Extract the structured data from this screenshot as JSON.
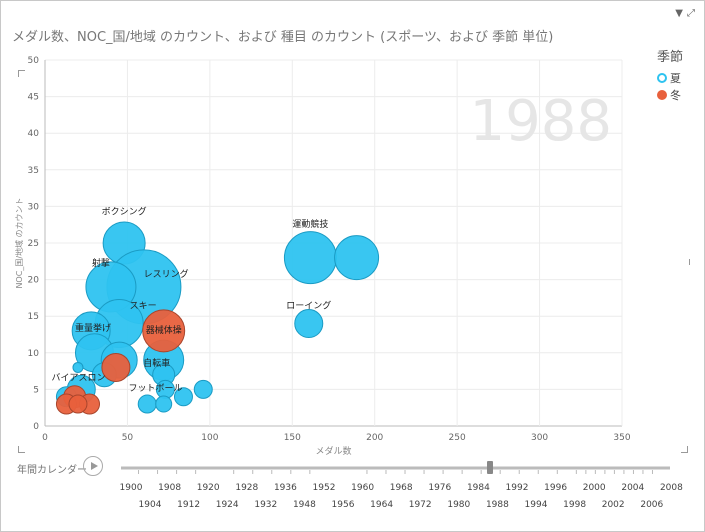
{
  "title": "メダル数、NOC_国/地域 のカウント、および 種目 のカウント (スポーツ、および 季節 単位)",
  "icons": {
    "filter": "filter-icon",
    "expand": "expand-icon"
  },
  "legend": {
    "title": "季節",
    "items": [
      {
        "label": "夏",
        "color": "#2ec3f0",
        "style": "outline"
      },
      {
        "label": "冬",
        "color": "#e8603c",
        "style": "filled"
      }
    ]
  },
  "play_axis": {
    "label": "年間カレンダー",
    "current": "1988",
    "years_top": [
      "1900",
      "1908",
      "1920",
      "1928",
      "1936",
      "1952",
      "1960",
      "1968",
      "1976",
      "1984",
      "1992",
      "1996",
      "2000",
      "2004",
      "2008"
    ],
    "years_bottom": [
      "1904",
      "1912",
      "1924",
      "1932",
      "1948",
      "1956",
      "1964",
      "1972",
      "1980",
      "1988",
      "1994",
      "1998",
      "2002",
      "2006"
    ]
  },
  "chart_data": {
    "type": "scatter",
    "title": "メダル数、NOC_国/地域 のカウント、および 種目 のカウント (スポーツ、および 季節 単位)",
    "xlabel": "メダル数",
    "ylabel": "NOC_国/地域 のカウント",
    "xlim": [
      0,
      350
    ],
    "ylim": [
      0,
      50
    ],
    "xticks": [
      0,
      50,
      100,
      150,
      200,
      250,
      300,
      350
    ],
    "yticks": [
      0,
      5,
      10,
      15,
      20,
      25,
      30,
      35,
      40,
      45,
      50
    ],
    "grid": true,
    "legend_position": "right",
    "watermark": "1988",
    "series": [
      {
        "name": "夏",
        "color": "#2ec3f0",
        "points": [
          {
            "x": 161,
            "y": 23,
            "size": 26,
            "label": "運動競技"
          },
          {
            "x": 189,
            "y": 23,
            "size": 22,
            "label": ""
          },
          {
            "x": 160,
            "y": 14,
            "size": 14,
            "label": "ローイング"
          },
          {
            "x": 48,
            "y": 25,
            "size": 21,
            "label": "ボクシング"
          },
          {
            "x": 60,
            "y": 19,
            "size": 37,
            "label": "レスリング"
          },
          {
            "x": 40,
            "y": 19,
            "size": 25,
            "label": "射撃"
          },
          {
            "x": 45,
            "y": 14,
            "size": 24,
            "label": "スキー"
          },
          {
            "x": 28,
            "y": 13,
            "size": 19,
            "label": "重量挙げ"
          },
          {
            "x": 30,
            "y": 10,
            "size": 19,
            "label": ""
          },
          {
            "x": 45,
            "y": 9,
            "size": 18,
            "label": ""
          },
          {
            "x": 72,
            "y": 9,
            "size": 20,
            "label": "自転車"
          },
          {
            "x": 36,
            "y": 7,
            "size": 12,
            "label": ""
          },
          {
            "x": 22,
            "y": 5,
            "size": 14,
            "label": "バイアスロン"
          },
          {
            "x": 13,
            "y": 4,
            "size": 10,
            "label": ""
          },
          {
            "x": 72,
            "y": 7,
            "size": 11,
            "label": ""
          },
          {
            "x": 73,
            "y": 5,
            "size": 9,
            "label": "フットボール"
          },
          {
            "x": 96,
            "y": 5,
            "size": 9,
            "label": ""
          },
          {
            "x": 84,
            "y": 4,
            "size": 9,
            "label": ""
          },
          {
            "x": 62,
            "y": 3,
            "size": 9,
            "label": ""
          },
          {
            "x": 72,
            "y": 3,
            "size": 8,
            "label": ""
          },
          {
            "x": 20,
            "y": 8,
            "size": 5,
            "label": ""
          }
        ]
      },
      {
        "name": "冬",
        "color": "#e8603c",
        "points": [
          {
            "x": 72,
            "y": 13,
            "size": 21,
            "label": "器械体操"
          },
          {
            "x": 43,
            "y": 8,
            "size": 14,
            "label": ""
          },
          {
            "x": 18,
            "y": 4,
            "size": 11,
            "label": ""
          },
          {
            "x": 13,
            "y": 3,
            "size": 10,
            "label": ""
          },
          {
            "x": 27,
            "y": 3,
            "size": 10,
            "label": ""
          },
          {
            "x": 20,
            "y": 3,
            "size": 9,
            "label": ""
          }
        ]
      }
    ]
  }
}
